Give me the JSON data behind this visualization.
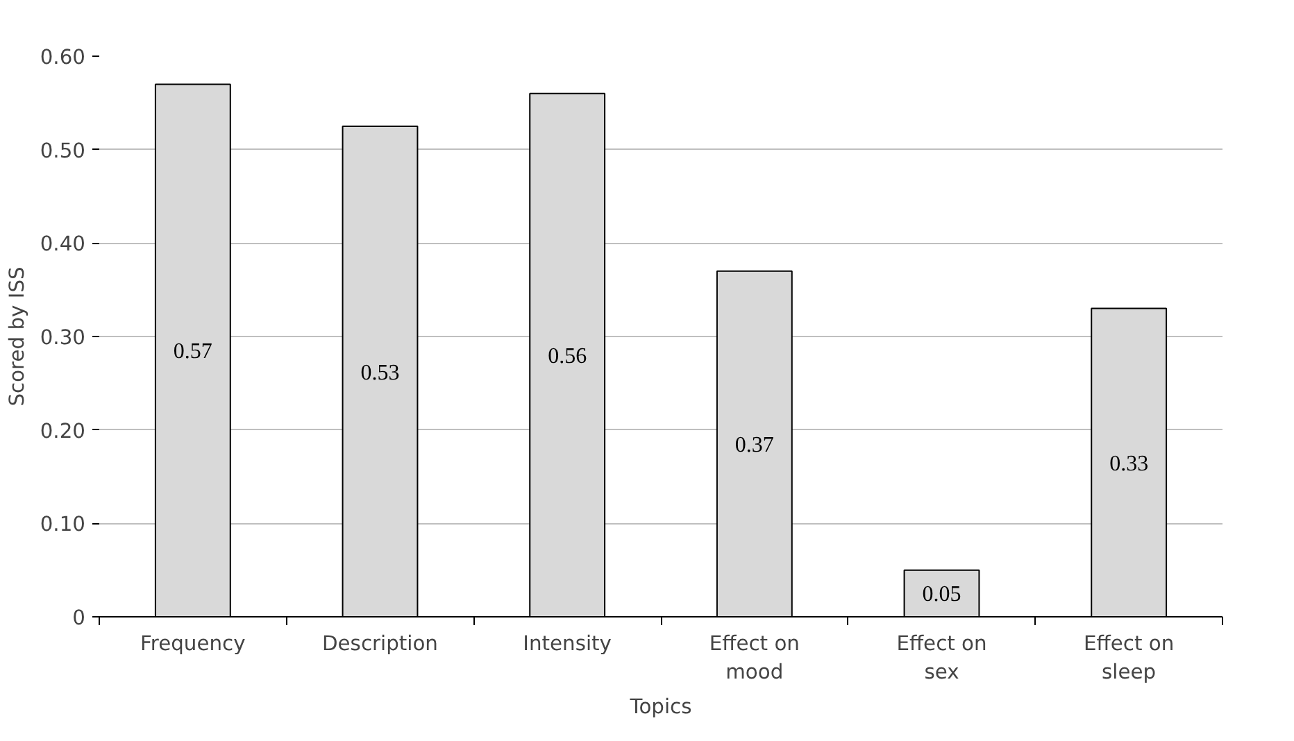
{
  "chart_data": {
    "type": "bar",
    "xlabel": "Topics",
    "ylabel": "Scored by ISS",
    "categories": [
      "Frequency",
      "Description",
      "Intensity",
      "Effect on mood",
      "Effect on sex",
      "Effect on sleep"
    ],
    "values": [
      0.57,
      0.525,
      0.56,
      0.37,
      0.05,
      0.33
    ],
    "value_labels": [
      "0.57",
      "0.53",
      "0.56",
      "0.37",
      "0.05",
      "0.33"
    ],
    "color": "#d9d9d9",
    "ylim": [
      0,
      0.6
    ],
    "yticks": [
      {
        "value": 0,
        "label": "0"
      },
      {
        "value": 0.1,
        "label": "0.10"
      },
      {
        "value": 0.2,
        "label": "0.20"
      },
      {
        "value": 0.3,
        "label": "0.30"
      },
      {
        "value": 0.4,
        "label": "0.40"
      },
      {
        "value": 0.5,
        "label": "0.50"
      },
      {
        "value": 0.6,
        "label": "0.60"
      }
    ],
    "grid": "y"
  }
}
